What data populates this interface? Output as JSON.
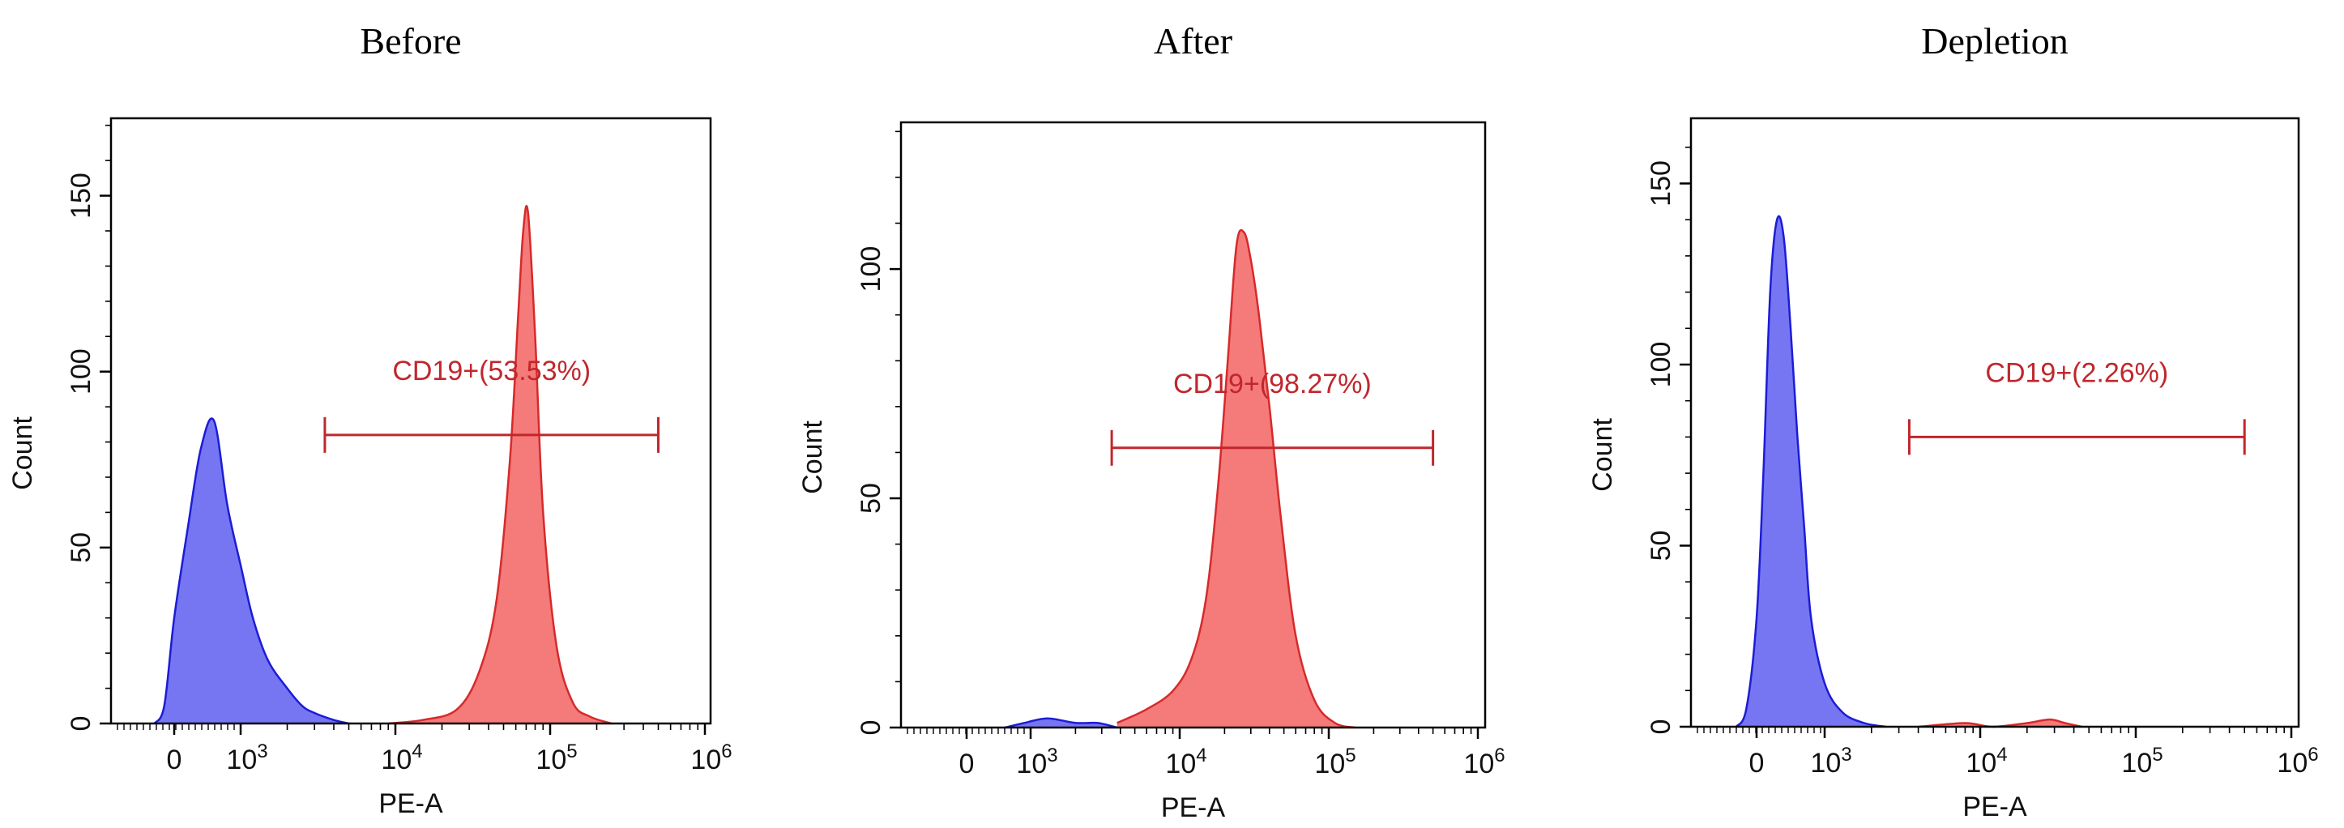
{
  "chart_data": [
    {
      "type": "area",
      "title": "Before",
      "xlabel": "PE-A",
      "ylabel": "Count",
      "x_scale": "biexponential",
      "x_ticks": [
        "0",
        "10^3",
        "10^4",
        "10^5",
        "10^6"
      ],
      "y_ticks": [
        "0",
        "50",
        "100",
        "150"
      ],
      "ylim": [
        0,
        172
      ],
      "grid": false,
      "colors": {
        "negative": "#6a6af2",
        "positive": "#f46f6f",
        "gate": "#c0272d"
      },
      "series": [
        {
          "color": "#6a6af2",
          "x": [
            -300,
            -150,
            0,
            200,
            400,
            600,
            800,
            1000,
            1200,
            1500,
            2000,
            2500,
            3000,
            4000,
            5000
          ],
          "y": [
            0,
            5,
            30,
            55,
            78,
            86,
            62,
            45,
            30,
            18,
            10,
            5,
            3,
            1,
            0
          ]
        },
        {
          "color": "#f46f6f",
          "x": [
            9000,
            15000,
            25000,
            35000,
            45000,
            55000,
            62000,
            67000,
            72000,
            80000,
            90000,
            110000,
            140000,
            180000,
            250000
          ],
          "y": [
            0,
            1,
            4,
            15,
            35,
            75,
            115,
            140,
            145,
            110,
            60,
            22,
            6,
            2,
            0
          ]
        }
      ],
      "gates": [
        {
          "label": "CD19+(53.53%)",
          "x_range": [
            3500,
            500000
          ],
          "y": 82
        }
      ]
    },
    {
      "type": "area",
      "title": "After",
      "xlabel": "PE-A",
      "ylabel": "Count",
      "x_scale": "biexponential",
      "x_ticks": [
        "0",
        "10^3",
        "10^4",
        "10^5",
        "10^6"
      ],
      "y_ticks": [
        "0",
        "50",
        "100"
      ],
      "ylim": [
        0,
        132
      ],
      "grid": false,
      "colors": {
        "negative": "#6a6af2",
        "positive": "#f46f6f",
        "gate": "#c0272d"
      },
      "series": [
        {
          "color": "#6a6af2",
          "x": [
            600,
            900,
            1300,
            2000,
            2800,
            3800
          ],
          "y": [
            0,
            1,
            2,
            1,
            1,
            0
          ]
        },
        {
          "color": "#f46f6f",
          "x": [
            3800,
            6000,
            9000,
            12000,
            15000,
            18000,
            21000,
            24000,
            27000,
            30000,
            34000,
            40000,
            48000,
            60000,
            80000,
            110000,
            150000
          ],
          "y": [
            1,
            4,
            8,
            15,
            28,
            52,
            80,
            105,
            108,
            102,
            90,
            70,
            45,
            20,
            6,
            1,
            0
          ]
        }
      ],
      "gates": [
        {
          "label": "CD19+(98.27%)",
          "x_range": [
            3500,
            500000
          ],
          "y": 61
        }
      ]
    },
    {
      "type": "area",
      "title": "Depletion",
      "xlabel": "PE-A",
      "ylabel": "Count",
      "x_scale": "biexponential",
      "x_ticks": [
        "0",
        "10^3",
        "10^4",
        "10^5",
        "10^6"
      ],
      "y_ticks": [
        "0",
        "50",
        "100",
        "150"
      ],
      "ylim": [
        0,
        168
      ],
      "grid": false,
      "colors": {
        "negative": "#6a6af2",
        "positive": "#f46f6f",
        "gate": "#c0272d"
      },
      "series": [
        {
          "color": "#6a6af2",
          "x": [
            -300,
            -150,
            0,
            100,
            200,
            300,
            400,
            500,
            600,
            700,
            800,
            1000,
            1300,
            1800,
            2500
          ],
          "y": [
            0,
            5,
            30,
            70,
            120,
            140,
            135,
            110,
            80,
            55,
            30,
            12,
            4,
            1,
            0
          ]
        },
        {
          "color": "#f46f6f",
          "x": [
            4000,
            8000,
            12000,
            20000,
            28000,
            35000,
            45000
          ],
          "y": [
            0,
            1,
            0,
            1,
            2,
            1,
            0
          ]
        }
      ],
      "gates": [
        {
          "label": "CD19+(2.26%)",
          "x_range": [
            3500,
            500000
          ],
          "y": 80
        }
      ]
    }
  ]
}
